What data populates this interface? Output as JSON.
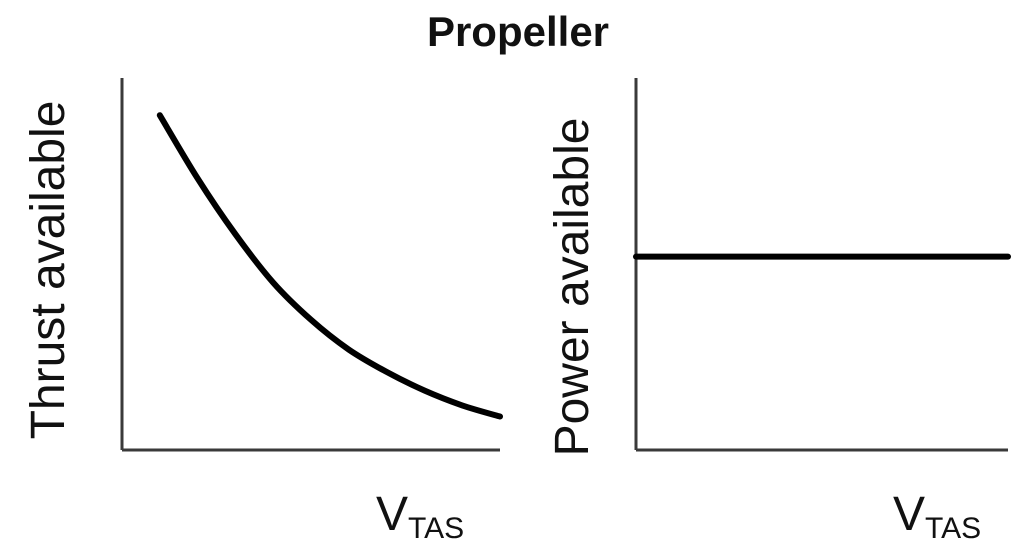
{
  "figure": {
    "title": "Propeller"
  },
  "chart_data": [
    {
      "type": "line",
      "title": "",
      "xlabel": {
        "main": "V",
        "subscript": "TAS"
      },
      "ylabel": "Thrust available",
      "grid": false,
      "legend": "none",
      "xlim": [
        0,
        1
      ],
      "ylim": [
        0,
        1
      ],
      "series": [
        {
          "x": [
            0.1,
            0.2,
            0.3,
            0.4,
            0.5,
            0.6,
            0.7,
            0.8,
            0.9,
            1.0
          ],
          "y": [
            0.9,
            0.73,
            0.58,
            0.45,
            0.35,
            0.27,
            0.21,
            0.16,
            0.12,
            0.09
          ]
        }
      ]
    },
    {
      "type": "line",
      "title": "",
      "xlabel": {
        "main": "V",
        "subscript": "TAS"
      },
      "ylabel": "Power available",
      "grid": false,
      "legend": "none",
      "xlim": [
        0,
        1
      ],
      "ylim": [
        0,
        1
      ],
      "series": [
        {
          "x": [
            0,
            1
          ],
          "y": [
            0.52,
            0.52
          ]
        }
      ]
    }
  ]
}
